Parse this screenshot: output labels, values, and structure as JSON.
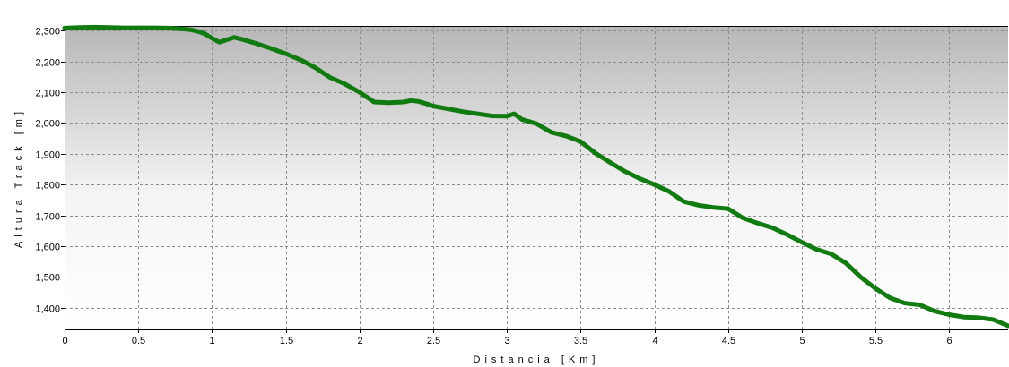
{
  "chart_data": {
    "type": "line",
    "title": "",
    "xlabel": "Distancia  [Km]",
    "ylabel": "Altura Track  [m]",
    "xlim": [
      0,
      6.4
    ],
    "ylim": [
      1330,
      2315
    ],
    "grid": true,
    "legend": "none",
    "x_ticks": [
      "0",
      "0.5",
      "1",
      "1.5",
      "2",
      "2.5",
      "3",
      "3.5",
      "4",
      "4.5",
      "5",
      "5.5",
      "6"
    ],
    "x_tick_values": [
      0,
      0.5,
      1,
      1.5,
      2,
      2.5,
      3,
      3.5,
      4,
      4.5,
      5,
      5.5,
      6
    ],
    "y_ticks": [
      "1,400",
      "1,500",
      "1,600",
      "1,700",
      "1,800",
      "1,900",
      "2,000",
      "2,100",
      "2,200",
      "2,300"
    ],
    "y_tick_values": [
      1400,
      1500,
      1600,
      1700,
      1800,
      1900,
      2000,
      2100,
      2200,
      2300
    ],
    "series": [
      {
        "color": "#117a11",
        "x": [
          0,
          0.1,
          0.2,
          0.3,
          0.4,
          0.5,
          0.6,
          0.7,
          0.8,
          0.85,
          0.9,
          0.95,
          1.0,
          1.05,
          1.1,
          1.15,
          1.2,
          1.3,
          1.4,
          1.5,
          1.6,
          1.7,
          1.8,
          1.9,
          2.0,
          2.1,
          2.2,
          2.3,
          2.35,
          2.4,
          2.45,
          2.5,
          2.6,
          2.7,
          2.8,
          2.9,
          3.0,
          3.05,
          3.1,
          3.2,
          3.3,
          3.4,
          3.5,
          3.6,
          3.7,
          3.8,
          3.9,
          4.0,
          4.1,
          4.2,
          4.3,
          4.4,
          4.5,
          4.6,
          4.7,
          4.8,
          4.9,
          5.0,
          5.1,
          5.2,
          5.3,
          5.4,
          5.5,
          5.6,
          5.7,
          5.8,
          5.9,
          6.0,
          6.1,
          6.2,
          6.3,
          6.4
        ],
        "y": [
          2308,
          2310,
          2311,
          2310,
          2309,
          2309,
          2309,
          2308,
          2305,
          2303,
          2298,
          2290,
          2275,
          2262,
          2270,
          2278,
          2272,
          2258,
          2242,
          2225,
          2205,
          2180,
          2148,
          2127,
          2100,
          2068,
          2066,
          2068,
          2073,
          2070,
          2063,
          2055,
          2046,
          2037,
          2030,
          2023,
          2022,
          2030,
          2012,
          1998,
          1970,
          1958,
          1940,
          1902,
          1872,
          1843,
          1820,
          1800,
          1778,
          1745,
          1733,
          1726,
          1722,
          1692,
          1675,
          1660,
          1638,
          1613,
          1590,
          1575,
          1545,
          1500,
          1463,
          1432,
          1415,
          1410,
          1390,
          1378,
          1370,
          1368,
          1362,
          1342
        ]
      }
    ]
  },
  "style": {
    "background_top": "#b7b7b7",
    "background_bottom": "#ffffff",
    "grid_color": "#8c8c8c",
    "axis_color": "#000000"
  }
}
